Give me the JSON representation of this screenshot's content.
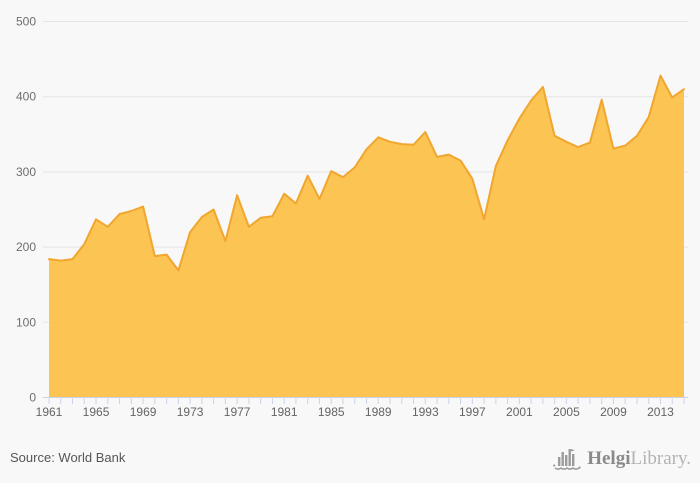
{
  "chart_data": {
    "type": "area",
    "title": "",
    "xlabel": "",
    "ylabel": "",
    "x": [
      1961,
      1962,
      1963,
      1964,
      1965,
      1966,
      1967,
      1968,
      1969,
      1970,
      1971,
      1972,
      1973,
      1974,
      1975,
      1976,
      1977,
      1978,
      1979,
      1980,
      1981,
      1982,
      1983,
      1984,
      1985,
      1986,
      1987,
      1988,
      1989,
      1990,
      1991,
      1992,
      1993,
      1994,
      1995,
      1996,
      1997,
      1998,
      1999,
      2000,
      2001,
      2002,
      2003,
      2004,
      2005,
      2006,
      2007,
      2008,
      2009,
      2010,
      2011,
      2012,
      2013,
      2014,
      2015
    ],
    "values": [
      184,
      182,
      184,
      204,
      237,
      227,
      244,
      248,
      254,
      188,
      190,
      169,
      220,
      240,
      250,
      208,
      269,
      227,
      239,
      241,
      271,
      258,
      295,
      264,
      301,
      293,
      306,
      330,
      346,
      340,
      337,
      336,
      353,
      320,
      323,
      315,
      291,
      237,
      308,
      342,
      371,
      395,
      413,
      348,
      340,
      333,
      339,
      396,
      331,
      335,
      348,
      373,
      428,
      399,
      410
    ],
    "ylim": [
      0,
      500
    ],
    "yticks": [
      0,
      100,
      200,
      300,
      400,
      500
    ],
    "xtick_labels": [
      1961,
      1965,
      1969,
      1973,
      1977,
      1981,
      1985,
      1989,
      1993,
      1997,
      2001,
      2005,
      2009,
      2013
    ],
    "grid": "horizontal",
    "legend": "none",
    "colors": {
      "fill": "#FBC14A",
      "line": "#F0A62F",
      "grid": "#e4e4e4",
      "axis": "#c9d2e6",
      "y_label": "#6e6e6e",
      "x_label": "#646464",
      "background": "#f8f8f8"
    }
  },
  "footer": {
    "source": "Source: World Bank"
  },
  "branding": {
    "name_bold": "Helgi",
    "name_light": "Library.",
    "icon": "helgi-library-icon",
    "icon_color": "#9b9b9b"
  }
}
